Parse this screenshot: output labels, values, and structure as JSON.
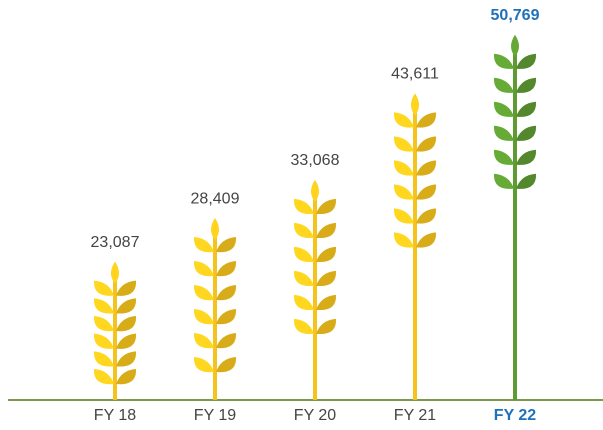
{
  "chart_data": {
    "type": "bar",
    "categories": [
      "FY 18",
      "FY 19",
      "FY 20",
      "FY 21",
      "FY 22"
    ],
    "values": [
      23087,
      28409,
      33068,
      43611,
      50769
    ],
    "value_labels": [
      "23,087",
      "28,409",
      "33,068",
      "43,611",
      "50,769"
    ],
    "colors": [
      "#f6c31c",
      "#f6c31c",
      "#f6c31c",
      "#f6c31c",
      "#5e9b32"
    ],
    "label_colors": [
      "#444444",
      "#444444",
      "#444444",
      "#444444",
      "#1f72b8"
    ],
    "label_weights": [
      "normal",
      "normal",
      "normal",
      "normal",
      "bold"
    ]
  }
}
